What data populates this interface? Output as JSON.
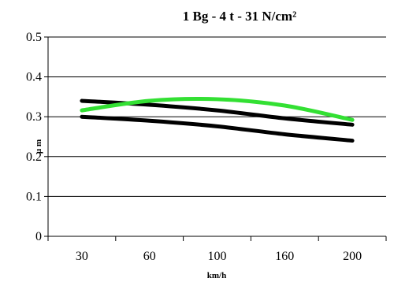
{
  "chart_data": {
    "type": "line",
    "title": "1 Bg - 4 t  - 31 N/cm²",
    "xlabel": "km/h",
    "ylabel": "µ m",
    "categories": [
      "30",
      "60",
      "100",
      "160",
      "200"
    ],
    "ylim": [
      0,
      0.5
    ],
    "yticks": [
      "0",
      "0.1",
      "0.2",
      "0.3",
      "0.4",
      "0.5"
    ],
    "grid": true,
    "series": [
      {
        "color": "#000000",
        "values": [
          0.34,
          0.33,
          0.316,
          0.296,
          0.28
        ]
      },
      {
        "color": "#000000",
        "values": [
          0.3,
          0.29,
          0.276,
          0.256,
          0.24
        ]
      },
      {
        "color": "#33e033",
        "values": [
          0.316,
          0.34,
          0.344,
          0.328,
          0.292
        ]
      }
    ]
  }
}
